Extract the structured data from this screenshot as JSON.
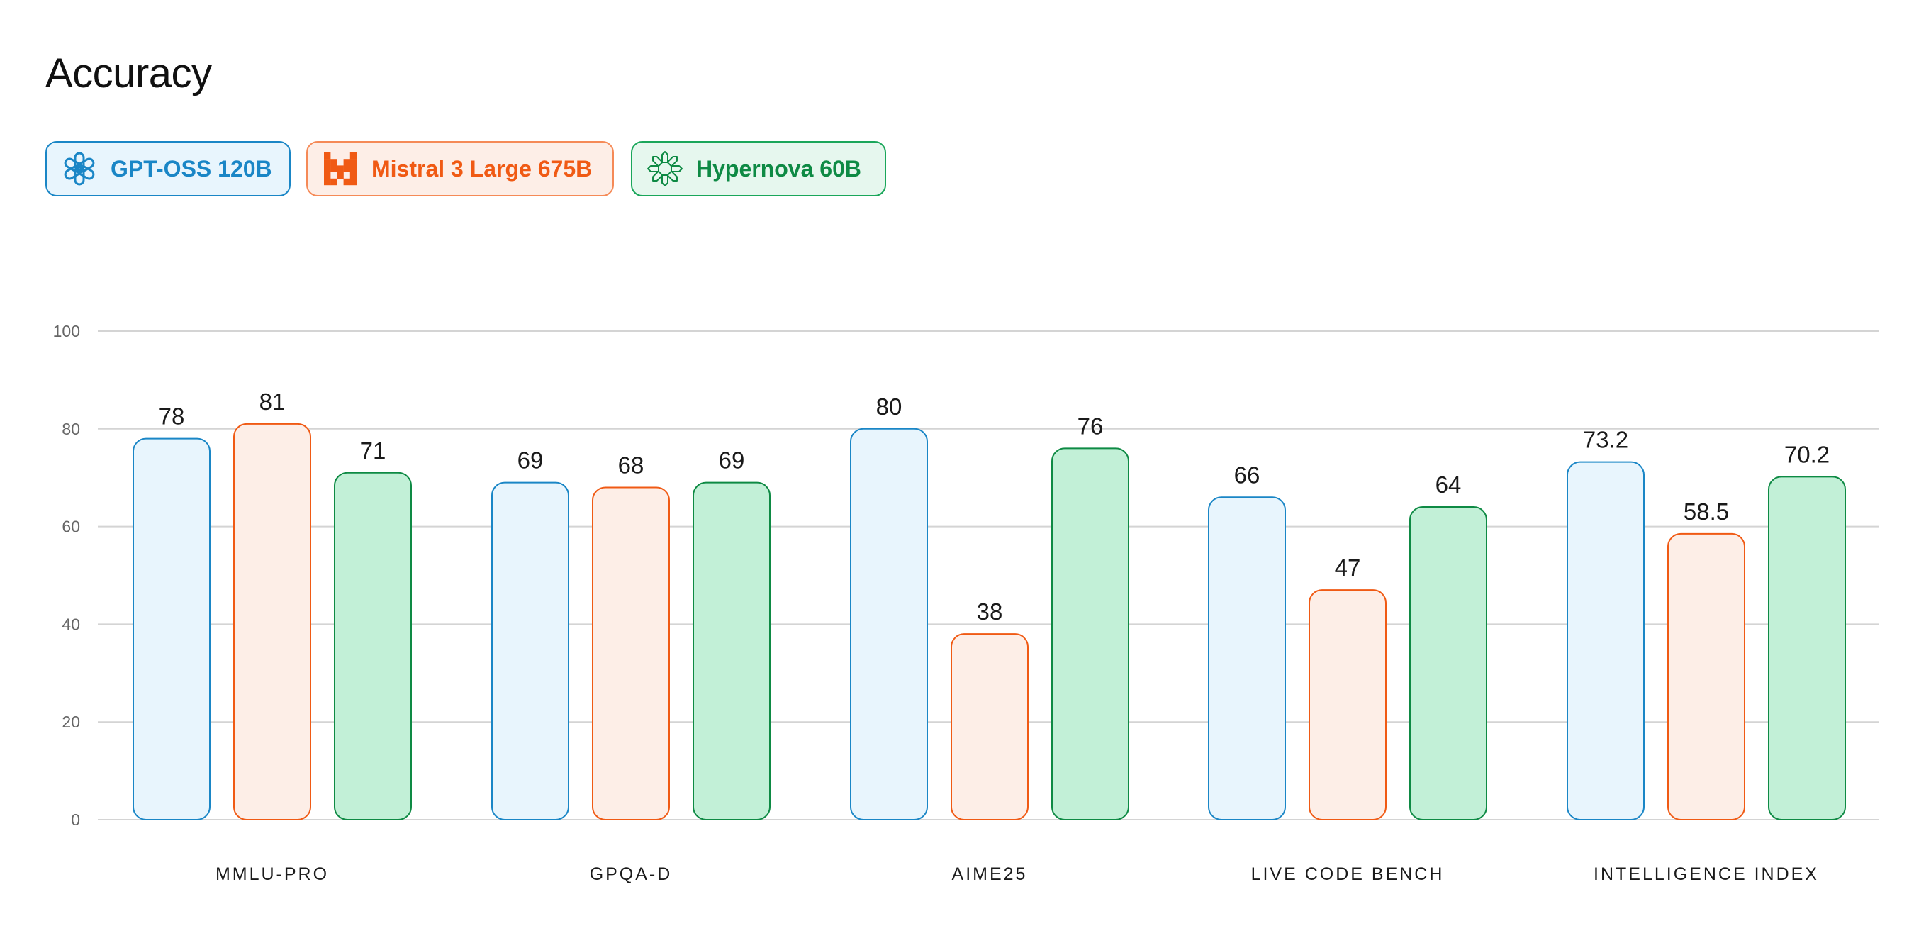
{
  "title": "Accuracy",
  "legend": [
    {
      "label": "GPT-OSS 120B",
      "icon": "openai-logo-icon",
      "color": "#1a86c6",
      "fill": "#e8f5fd",
      "border": "#1a86c6"
    },
    {
      "label": "Mistral 3 Large 675B",
      "icon": "mistral-logo-icon",
      "color": "#f05a14",
      "fill": "#fdeee7",
      "border": "#f58a57"
    },
    {
      "label": "Hypernova 60B",
      "icon": "hypernova-logo-icon",
      "color": "#0e8a44",
      "fill": "#e6f7ee",
      "border": "#1aa65a"
    }
  ],
  "chart_data": {
    "type": "bar",
    "title": "Accuracy",
    "categories": [
      "MMLU-PRO",
      "GPQA-D",
      "AIME25",
      "LIVE CODE BENCH",
      "INTELLIGENCE INDEX"
    ],
    "series": [
      {
        "name": "GPT-OSS 120B",
        "values": [
          78,
          69,
          80,
          66,
          73.2
        ],
        "labels": [
          "78",
          "69",
          "80",
          "66",
          "73.2"
        ],
        "stroke": "#1a86c6",
        "fill": "#e8f5fd"
      },
      {
        "name": "Mistral 3 Large 675B",
        "values": [
          81,
          68,
          38,
          47,
          58.5
        ],
        "labels": [
          "81",
          "68",
          "38",
          "47",
          "58.5"
        ],
        "stroke": "#f05a14",
        "fill": "#fdeee7"
      },
      {
        "name": "Hypernova 60B",
        "values": [
          71,
          69,
          76,
          64,
          70.2
        ],
        "labels": [
          "71",
          "69",
          "76",
          "64",
          "70.2"
        ],
        "stroke": "#0e8a44",
        "fill": "#c2f0d7"
      }
    ],
    "yticks": [
      0,
      20,
      40,
      60,
      80,
      100
    ],
    "ylim": [
      0,
      100
    ],
    "grid": true,
    "legend_position": "top-left"
  }
}
